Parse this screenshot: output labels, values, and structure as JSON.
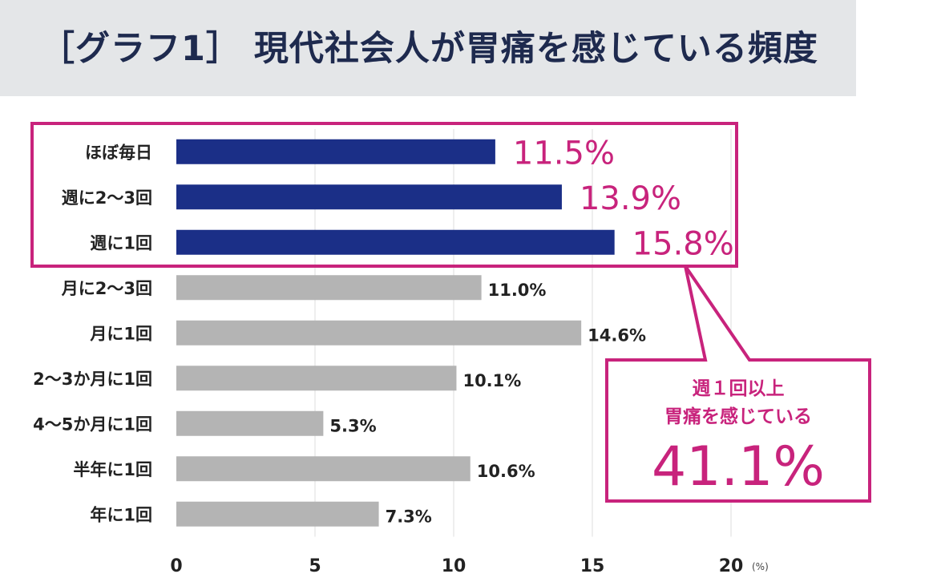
{
  "header": {
    "title": "［グラフ1］ 現代社会人が胃痛を感じている頻度"
  },
  "chart_data": {
    "type": "bar",
    "orientation": "horizontal",
    "title": "［グラフ1］ 現代社会人が胃痛を感じている頻度",
    "categories": [
      "ほぼ毎日",
      "週に2〜3回",
      "週に1回",
      "月に2〜3回",
      "月に1回",
      "2〜3か月に1回",
      "4〜5か月に1回",
      "半年に1回",
      "年に1回"
    ],
    "values": [
      11.5,
      13.9,
      15.8,
      11.0,
      14.6,
      10.1,
      5.3,
      10.6,
      7.3
    ],
    "value_labels": [
      "11.5%",
      "13.9%",
      "15.8%",
      "11.0%",
      "14.6%",
      "10.1%",
      "5.3%",
      "10.6%",
      "7.3%"
    ],
    "highlighted": [
      true,
      true,
      true,
      false,
      false,
      false,
      false,
      false,
      false
    ],
    "xlim": [
      0,
      20
    ],
    "xticks": [
      0,
      5,
      10,
      15,
      20
    ],
    "xtick_labels": [
      "0",
      "5",
      "10",
      "15",
      "20"
    ],
    "x_unit": "(%)",
    "grid": "vertical",
    "colors": {
      "highlight": "#1b2f87",
      "normal": "#b4b4b4",
      "accent": "#c8237c",
      "grid": "#dcdcdc"
    },
    "annotation": {
      "lines": [
        "週１回以上",
        "胃痛を感じている"
      ],
      "value": "41.1%"
    }
  }
}
